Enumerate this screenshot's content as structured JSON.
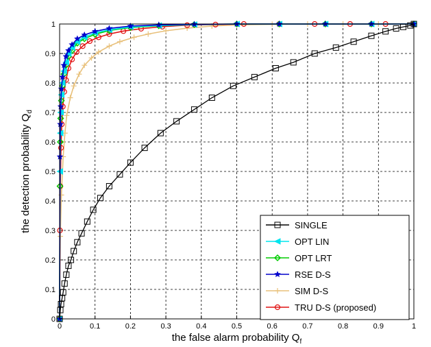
{
  "chart_data": {
    "type": "line",
    "title": "",
    "xlabel": "the false alarm probability Q",
    "xlabel_sub": "f",
    "ylabel": "the detection probability Q",
    "ylabel_sub": "d",
    "xlim": [
      0,
      1
    ],
    "ylim": [
      0,
      1
    ],
    "grid": true,
    "grid_style": "dashed",
    "legend_position": "bottom-right",
    "x_ticks": [
      "0",
      "0.1",
      "0.2",
      "0.3",
      "0.4",
      "0.5",
      "0.6",
      "0.7",
      "0.8",
      "0.9",
      "1"
    ],
    "y_ticks": [
      "0",
      "0.1",
      "0.2",
      "0.3",
      "0.4",
      "0.5",
      "0.6",
      "0.7",
      "0.8",
      "0.9",
      "1"
    ],
    "series": [
      {
        "name": "SINGLE",
        "color": "#000000",
        "marker": "square",
        "x": [
          0,
          0.002,
          0.004,
          0.007,
          0.01,
          0.014,
          0.019,
          0.025,
          0.032,
          0.04,
          0.05,
          0.062,
          0.078,
          0.095,
          0.115,
          0.14,
          0.17,
          0.2,
          0.24,
          0.285,
          0.33,
          0.38,
          0.43,
          0.49,
          0.55,
          0.61,
          0.66,
          0.72,
          0.78,
          0.83,
          0.88,
          0.92,
          0.95,
          0.97,
          0.99,
          1.0
        ],
        "y": [
          0,
          0.03,
          0.05,
          0.07,
          0.09,
          0.12,
          0.15,
          0.18,
          0.2,
          0.23,
          0.26,
          0.29,
          0.33,
          0.37,
          0.41,
          0.45,
          0.49,
          0.53,
          0.58,
          0.63,
          0.67,
          0.71,
          0.75,
          0.79,
          0.82,
          0.85,
          0.87,
          0.9,
          0.92,
          0.94,
          0.96,
          0.975,
          0.985,
          0.99,
          0.995,
          1.0
        ]
      },
      {
        "name": "OPT LIN",
        "color": "#00e5ee",
        "marker": "triangle-left",
        "x": [
          0,
          0.001,
          0.002,
          0.003,
          0.005,
          0.008,
          0.012,
          0.018,
          0.025,
          0.035,
          0.05,
          0.07,
          0.1,
          0.14,
          0.2,
          0.28,
          0.38,
          0.5,
          0.62,
          0.75,
          0.88,
          1.0
        ],
        "y": [
          0,
          0.5,
          0.63,
          0.7,
          0.76,
          0.8,
          0.84,
          0.87,
          0.9,
          0.92,
          0.94,
          0.955,
          0.97,
          0.98,
          0.99,
          0.995,
          0.998,
          1.0,
          1.0,
          1.0,
          1.0,
          1.0
        ]
      },
      {
        "name": "OPT LRT",
        "color": "#00cc00",
        "marker": "diamond",
        "x": [
          0,
          0.001,
          0.002,
          0.003,
          0.005,
          0.008,
          0.012,
          0.018,
          0.025,
          0.035,
          0.05,
          0.07,
          0.1,
          0.14,
          0.2,
          0.28,
          0.38,
          0.5,
          0.62,
          0.75,
          0.88,
          1.0
        ],
        "y": [
          0,
          0.45,
          0.6,
          0.68,
          0.74,
          0.79,
          0.83,
          0.86,
          0.89,
          0.91,
          0.935,
          0.95,
          0.965,
          0.978,
          0.988,
          0.994,
          0.998,
          1.0,
          1.0,
          1.0,
          1.0,
          1.0
        ]
      },
      {
        "name": "RSE D-S",
        "color": "#0000cc",
        "marker": "star",
        "x": [
          0,
          0.001,
          0.002,
          0.003,
          0.005,
          0.008,
          0.012,
          0.018,
          0.025,
          0.035,
          0.05,
          0.07,
          0.1,
          0.14,
          0.2,
          0.28,
          0.38,
          0.5,
          0.62,
          0.75,
          0.88,
          1.0
        ],
        "y": [
          0,
          0.55,
          0.66,
          0.72,
          0.78,
          0.82,
          0.86,
          0.89,
          0.91,
          0.93,
          0.95,
          0.963,
          0.975,
          0.985,
          0.993,
          0.997,
          0.999,
          1.0,
          1.0,
          1.0,
          1.0,
          1.0
        ]
      },
      {
        "name": "SIM D-S",
        "color": "#e8c07a",
        "marker": "plus",
        "x": [
          0,
          0.002,
          0.005,
          0.01,
          0.015,
          0.02,
          0.03,
          0.04,
          0.055,
          0.07,
          0.09,
          0.11,
          0.14,
          0.17,
          0.21,
          0.25,
          0.3,
          0.36,
          0.43,
          0.5,
          0.6,
          0.7,
          0.8,
          0.9,
          1.0
        ],
        "y": [
          0,
          0.28,
          0.42,
          0.55,
          0.63,
          0.69,
          0.75,
          0.79,
          0.83,
          0.86,
          0.885,
          0.905,
          0.925,
          0.94,
          0.955,
          0.966,
          0.977,
          0.986,
          0.993,
          0.997,
          0.999,
          1.0,
          1.0,
          1.0,
          1.0
        ]
      },
      {
        "name": "TRU D-S (proposed)",
        "color": "#e01010",
        "marker": "circle",
        "x": [
          0,
          0.001,
          0.002,
          0.004,
          0.006,
          0.009,
          0.013,
          0.018,
          0.025,
          0.035,
          0.048,
          0.065,
          0.085,
          0.11,
          0.14,
          0.18,
          0.23,
          0.29,
          0.36,
          0.44,
          0.52,
          0.62,
          0.72,
          0.82,
          0.92,
          1.0
        ],
        "y": [
          0,
          0.3,
          0.45,
          0.58,
          0.66,
          0.72,
          0.77,
          0.81,
          0.85,
          0.88,
          0.905,
          0.925,
          0.942,
          0.955,
          0.966,
          0.976,
          0.984,
          0.991,
          0.996,
          0.998,
          1.0,
          1.0,
          1.0,
          1.0,
          1.0,
          1.0
        ]
      }
    ]
  }
}
